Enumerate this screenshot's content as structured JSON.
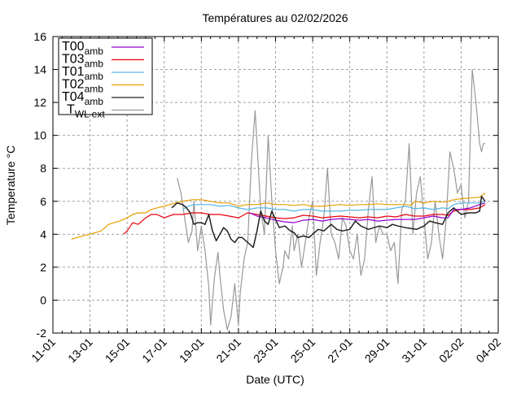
{
  "chart_data": {
    "type": "line",
    "title": "Températures  au 02/02/2026",
    "xlabel": "Date (UTC)",
    "ylabel": "Temperature °C",
    "xlim_days": [
      0,
      24
    ],
    "x_unit": "days since 11-01 (UTC)",
    "ylim": [
      -2,
      16
    ],
    "grid": true,
    "legend_position": "top-left",
    "x_ticks": [
      {
        "day": 0,
        "label": "11-01"
      },
      {
        "day": 2,
        "label": "13-01"
      },
      {
        "day": 4,
        "label": "15-01"
      },
      {
        "day": 6,
        "label": "17-01"
      },
      {
        "day": 8,
        "label": "19-01"
      },
      {
        "day": 10,
        "label": "21-01"
      },
      {
        "day": 12,
        "label": "23-01"
      },
      {
        "day": 14,
        "label": "25-01"
      },
      {
        "day": 16,
        "label": "27-01"
      },
      {
        "day": 18,
        "label": "29-01"
      },
      {
        "day": 20,
        "label": "31-01"
      },
      {
        "day": 22,
        "label": "02-02"
      },
      {
        "day": 24,
        "label": "04-02"
      }
    ],
    "y_ticks": [
      "-2",
      "0",
      "2",
      "4",
      "6",
      "8",
      "10",
      "12",
      "14",
      "16"
    ],
    "series": [
      {
        "name": "T00",
        "sub": "amb",
        "color": "#9400d3",
        "x": [
          10.6,
          11.0,
          11.5,
          12.0,
          12.5,
          13.0,
          13.5,
          14.0,
          14.5,
          15.0,
          15.5,
          16.0,
          16.5,
          17.0,
          17.5,
          18.0,
          18.5,
          19.0,
          19.5,
          20.0,
          20.5,
          21.0,
          21.3,
          21.6,
          22.0,
          22.5,
          23.0,
          23.3
        ],
        "y": [
          5.3,
          5.1,
          5.0,
          4.85,
          4.75,
          4.7,
          4.85,
          4.9,
          4.8,
          4.9,
          4.95,
          4.9,
          4.85,
          4.9,
          4.8,
          4.85,
          4.9,
          4.9,
          4.9,
          5.0,
          5.1,
          5.0,
          5.0,
          5.5,
          5.5,
          5.6,
          5.8,
          5.9
        ]
      },
      {
        "name": "T03",
        "sub": "amb",
        "color": "#e8000b",
        "x": [
          3.8,
          4.0,
          4.3,
          4.6,
          5.0,
          5.3,
          5.6,
          6.0,
          6.5,
          7.0,
          7.5,
          8.0,
          8.5,
          9.0,
          9.5,
          10.0,
          10.5,
          11.0,
          11.5,
          12.0,
          12.5,
          13.0,
          13.5,
          14.0,
          14.5,
          15.0,
          15.5,
          16.0,
          16.5,
          17.0,
          17.5,
          18.0,
          18.5,
          19.0,
          19.5,
          20.0,
          20.5,
          21.0,
          21.3,
          21.6,
          22.0,
          22.5,
          23.0,
          23.3
        ],
        "y": [
          4.0,
          4.2,
          4.7,
          4.6,
          5.0,
          5.2,
          5.2,
          5.0,
          5.2,
          5.2,
          5.3,
          5.3,
          5.2,
          5.2,
          5.1,
          5.0,
          5.3,
          5.2,
          5.1,
          5.0,
          4.95,
          5.0,
          5.15,
          5.1,
          5.0,
          5.05,
          5.1,
          5.05,
          5.0,
          5.05,
          5.0,
          5.1,
          5.05,
          5.2,
          5.1,
          5.1,
          5.2,
          5.2,
          5.15,
          5.4,
          5.5,
          5.5,
          5.6,
          5.8
        ]
      },
      {
        "name": "T01",
        "sub": "amb",
        "color": "#56b4e9",
        "x": [
          7.0,
          7.3,
          7.6,
          8.0,
          8.5,
          9.0,
          9.5,
          10.0,
          10.5,
          11.0,
          11.5,
          12.0,
          12.5,
          13.0,
          13.5,
          14.0,
          14.5,
          15.0,
          15.5,
          16.0,
          16.5,
          17.0,
          17.5,
          18.0,
          18.5,
          19.0,
          19.5,
          20.0,
          20.5,
          21.0,
          21.3,
          21.6,
          22.0,
          22.5,
          23.0,
          23.3
        ],
        "y": [
          5.5,
          5.7,
          5.8,
          5.8,
          5.8,
          5.7,
          5.75,
          5.6,
          5.5,
          5.6,
          5.6,
          5.5,
          5.5,
          5.4,
          5.5,
          5.5,
          5.4,
          5.4,
          5.4,
          5.45,
          5.45,
          5.5,
          5.5,
          5.5,
          5.6,
          5.7,
          5.55,
          5.6,
          5.5,
          5.6,
          5.55,
          5.8,
          5.9,
          5.9,
          5.9,
          6.0
        ]
      },
      {
        "name": "T02",
        "sub": "amb",
        "color": "#e69f00",
        "x": [
          1.0,
          1.3,
          1.6,
          2.0,
          2.3,
          2.6,
          3.0,
          3.3,
          3.6,
          4.0,
          4.3,
          4.6,
          5.0,
          5.3,
          5.6,
          6.0,
          6.3,
          6.6,
          7.0,
          7.5,
          8.0,
          8.5,
          9.0,
          9.5,
          10.0,
          10.5,
          11.0,
          11.5,
          12.0,
          12.5,
          13.0,
          13.5,
          14.0,
          14.5,
          15.0,
          15.5,
          16.0,
          16.5,
          17.0,
          17.5,
          18.0,
          18.5,
          19.0,
          19.3,
          19.5,
          20.0,
          20.5,
          21.0,
          21.3,
          21.6,
          22.0,
          22.5,
          23.0,
          23.3
        ],
        "y": [
          3.7,
          3.8,
          3.9,
          4.0,
          4.1,
          4.2,
          4.6,
          4.7,
          4.8,
          5.0,
          5.2,
          5.3,
          5.3,
          5.5,
          5.6,
          5.7,
          5.8,
          5.9,
          6.0,
          6.1,
          6.1,
          6.0,
          5.9,
          5.9,
          5.7,
          5.8,
          5.8,
          5.9,
          5.8,
          5.8,
          5.75,
          5.8,
          5.7,
          5.7,
          5.75,
          5.8,
          5.75,
          5.8,
          5.8,
          5.85,
          5.8,
          5.8,
          5.8,
          5.75,
          6.0,
          5.9,
          6.0,
          5.95,
          6.0,
          6.1,
          6.15,
          6.2,
          6.25,
          6.5
        ]
      },
      {
        "name": "T04",
        "sub": "amb",
        "color": "#222222",
        "x": [
          6.4,
          6.7,
          7.0,
          7.2,
          7.4,
          7.6,
          7.8,
          8.0,
          8.2,
          8.4,
          8.6,
          8.8,
          9.0,
          9.2,
          9.4,
          9.6,
          9.8,
          10.0,
          10.2,
          10.4,
          10.6,
          10.8,
          11.0,
          11.2,
          11.4,
          11.6,
          11.8,
          12.0,
          12.2,
          12.5,
          12.8,
          13.0,
          13.2,
          13.5,
          13.8,
          14.0,
          14.3,
          14.6,
          15.0,
          15.3,
          15.6,
          16.0,
          16.3,
          16.6,
          17.0,
          17.3,
          17.6,
          18.0,
          18.3,
          18.6,
          19.0,
          19.3,
          19.6,
          20.0,
          20.3,
          20.6,
          21.0,
          21.3,
          21.6,
          22.0,
          22.4,
          22.8,
          23.0,
          23.1,
          23.3
        ],
        "y": [
          5.6,
          5.9,
          5.8,
          5.6,
          5.3,
          4.6,
          4.7,
          4.7,
          4.6,
          5.2,
          4.2,
          3.6,
          4.0,
          4.4,
          4.2,
          3.7,
          3.5,
          3.8,
          3.8,
          3.6,
          3.4,
          3.2,
          4.2,
          5.4,
          4.8,
          4.6,
          5.4,
          4.9,
          4.4,
          4.5,
          4.2,
          4.1,
          3.8,
          3.9,
          3.8,
          4.0,
          4.3,
          4.2,
          4.6,
          4.3,
          4.2,
          4.3,
          4.8,
          4.5,
          4.3,
          4.4,
          4.5,
          4.4,
          4.6,
          4.5,
          4.4,
          4.35,
          4.3,
          4.5,
          4.8,
          4.7,
          4.6,
          5.3,
          5.6,
          5.2,
          5.3,
          5.3,
          5.4,
          6.3,
          6.0
        ]
      },
      {
        "name": "T",
        "sub": "WLext",
        "color": "#999999",
        "x": [
          6.7,
          6.9,
          7.1,
          7.3,
          7.5,
          7.6,
          7.8,
          8.0,
          8.2,
          8.4,
          8.5,
          8.7,
          8.9,
          9.0,
          9.2,
          9.4,
          9.6,
          9.8,
          10.0,
          10.1,
          10.3,
          10.5,
          10.7,
          10.9,
          11.0,
          11.2,
          11.4,
          11.6,
          11.8,
          12.0,
          12.2,
          12.4,
          12.5,
          12.7,
          12.9,
          13.0,
          13.2,
          13.4,
          13.6,
          13.8,
          14.0,
          14.2,
          14.4,
          14.6,
          14.8,
          15.0,
          15.2,
          15.4,
          15.6,
          15.8,
          16.0,
          16.2,
          16.4,
          16.6,
          16.8,
          17.0,
          17.2,
          17.4,
          17.6,
          17.8,
          18.0,
          18.2,
          18.4,
          18.6,
          18.8,
          19.0,
          19.2,
          19.4,
          19.6,
          19.8,
          20.0,
          20.2,
          20.4,
          20.6,
          20.8,
          21.0,
          21.2,
          21.4,
          21.6,
          21.8,
          22.0,
          22.2,
          22.4,
          22.6,
          22.8,
          23.0,
          23.1,
          23.2,
          23.3
        ],
        "y": [
          7.4,
          6.5,
          5.0,
          3.5,
          4.2,
          6.0,
          3.0,
          4.5,
          3.0,
          0.8,
          -1.5,
          1.3,
          2.9,
          1.5,
          -0.6,
          -1.8,
          -1.0,
          1.0,
          -1.5,
          0.5,
          2.5,
          3.5,
          8.5,
          11.5,
          9.5,
          5.5,
          4.0,
          10.0,
          6.0,
          3.0,
          1.0,
          2.0,
          3.0,
          2.5,
          4.5,
          3.0,
          4.0,
          2.0,
          3.5,
          5.0,
          6.0,
          1.5,
          3.5,
          5.0,
          8.0,
          4.0,
          3.5,
          2.5,
          5.0,
          4.5,
          3.0,
          2.5,
          4.0,
          1.5,
          2.5,
          5.5,
          7.5,
          3.5,
          4.5,
          4.0,
          4.0,
          3.0,
          3.5,
          1.0,
          5.5,
          6.0,
          9.5,
          4.0,
          6.5,
          7.5,
          5.0,
          2.5,
          3.5,
          6.0,
          4.0,
          2.5,
          5.0,
          9.0,
          8.0,
          6.5,
          7.0,
          5.0,
          6.0,
          14.0,
          12.0,
          9.5,
          9.0,
          9.5,
          9.5
        ]
      }
    ]
  }
}
